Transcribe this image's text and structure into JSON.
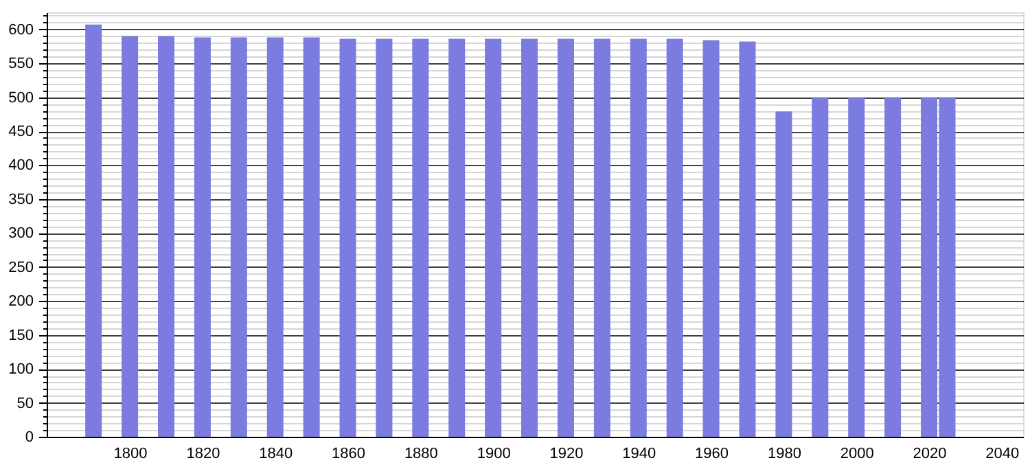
{
  "chart_data": {
    "type": "bar",
    "x": [
      1790,
      1800,
      1810,
      1820,
      1830,
      1840,
      1850,
      1860,
      1870,
      1880,
      1890,
      1900,
      1910,
      1920,
      1930,
      1940,
      1950,
      1960,
      1970,
      1980,
      1990,
      2000,
      2010,
      2020,
      2025
    ],
    "values": [
      607,
      590,
      590,
      588,
      588,
      588,
      588,
      586,
      586,
      586,
      586,
      586,
      586,
      586,
      586,
      586,
      586,
      584,
      582,
      479,
      500,
      500,
      500,
      500,
      500
    ],
    "color": "#7b7be0",
    "xlim": [
      1779,
      2044
    ],
    "xticks": [
      1800,
      1820,
      1840,
      1860,
      1880,
      1900,
      1920,
      1940,
      1960,
      1980,
      2000,
      2020,
      2040
    ],
    "ylim": [
      0,
      625
    ],
    "yticks": [
      0,
      {
        "value": 10,
        "label": null
      },
      {
        "value": 20,
        "label": null
      },
      {
        "value": 30,
        "label": null
      },
      {
        "value": 40,
        "label": null
      },
      50,
      {
        "value": 60,
        "label": null
      },
      {
        "value": 70,
        "label": null
      },
      {
        "value": 80,
        "label": null
      },
      {
        "value": 90,
        "label": null
      },
      100,
      {
        "value": 110,
        "label": null
      },
      {
        "value": 120,
        "label": null
      },
      {
        "value": 130,
        "label": null
      },
      {
        "value": 140,
        "label": null
      },
      150,
      {
        "value": 160,
        "label": null
      },
      {
        "value": 170,
        "label": null
      },
      {
        "value": 180,
        "label": null
      },
      {
        "value": 190,
        "label": null
      },
      200,
      {
        "value": 210,
        "label": null
      },
      {
        "value": 220,
        "label": null
      },
      {
        "value": 230,
        "label": null
      },
      {
        "value": 240,
        "label": null
      },
      250,
      {
        "value": 260,
        "label": null
      },
      {
        "value": 270,
        "label": null
      },
      {
        "value": 280,
        "label": null
      },
      {
        "value": 290,
        "label": null
      },
      300,
      {
        "value": 310,
        "label": null
      },
      {
        "value": 320,
        "label": null
      },
      {
        "value": 330,
        "label": null
      },
      {
        "value": 340,
        "label": null
      },
      350,
      {
        "value": 360,
        "label": null
      },
      {
        "value": 370,
        "label": null
      },
      {
        "value": 380,
        "label": null
      },
      {
        "value": 390,
        "label": null
      },
      400,
      {
        "value": 410,
        "label": null
      },
      {
        "value": 420,
        "label": null
      },
      {
        "value": 430,
        "label": null
      },
      {
        "value": 440,
        "label": null
      },
      450,
      {
        "value": 460,
        "label": null
      },
      {
        "value": 470,
        "label": null
      },
      {
        "value": 480,
        "label": null
      },
      {
        "value": 490,
        "label": null
      },
      500,
      {
        "value": 510,
        "label": null
      },
      {
        "value": 520,
        "label": null
      },
      {
        "value": 530,
        "label": null
      },
      {
        "value": 540,
        "label": null
      },
      550,
      {
        "value": 560,
        "label": null
      },
      {
        "value": 570,
        "label": null
      },
      {
        "value": 580,
        "label": null
      },
      {
        "value": 590,
        "label": null
      },
      600,
      {
        "value": 610,
        "label": null
      },
      {
        "value": 620,
        "label": null
      }
    ],
    "grid": "y"
  }
}
